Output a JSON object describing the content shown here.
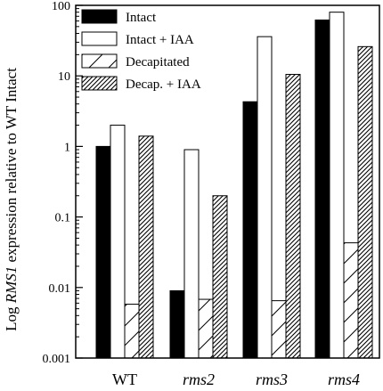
{
  "chart_data": {
    "type": "bar",
    "title": "",
    "xlabel": "",
    "ylabel": {
      "prefix": "Log ",
      "gene": "RMS1",
      "suffix": " expression relative to WT Intact"
    },
    "y_scale": "log",
    "ylim": [
      0.001,
      100
    ],
    "y_ticks": [
      {
        "value": 0.001,
        "label": "0.001"
      },
      {
        "value": 0.01,
        "label": "0.01"
      },
      {
        "value": 0.1,
        "label": "0.1"
      },
      {
        "value": 1,
        "label": "1"
      },
      {
        "value": 10,
        "label": "10"
      },
      {
        "value": 100,
        "label": "100"
      }
    ],
    "categories": [
      {
        "label": "WT",
        "italic": false
      },
      {
        "label": "rms2",
        "italic": true
      },
      {
        "label": "rms3",
        "italic": true
      },
      {
        "label": "rms4",
        "italic": true
      }
    ],
    "series": [
      {
        "name": "Intact",
        "fill": "solid",
        "values": [
          1.0,
          0.009,
          4.3,
          62
        ]
      },
      {
        "name": "Intact + IAA",
        "fill": "open",
        "values": [
          2.0,
          0.9,
          36,
          80
        ]
      },
      {
        "name": "Decapitated",
        "fill": "sparse-hatch",
        "values": [
          0.0058,
          0.0068,
          0.0065,
          0.043
        ]
      },
      {
        "name": "Decap. + IAA",
        "fill": "dense-hatch",
        "values": [
          1.4,
          0.2,
          10.5,
          26
        ]
      }
    ],
    "legend_position": "top-left",
    "grid": false
  }
}
